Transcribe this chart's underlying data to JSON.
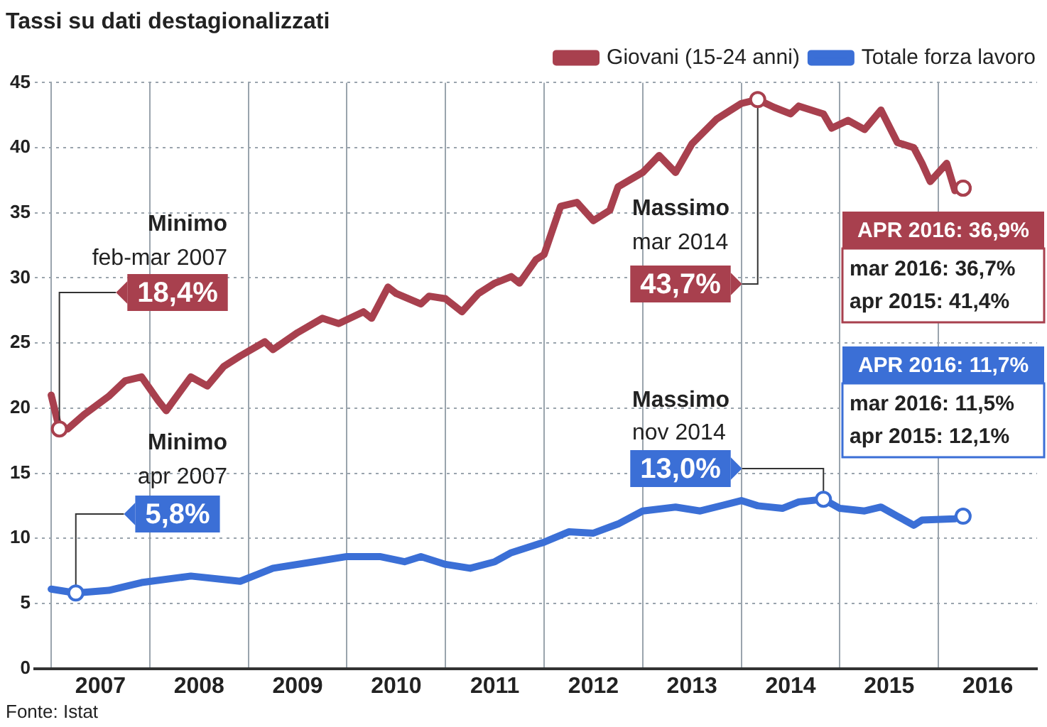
{
  "chart_data": {
    "type": "line",
    "title": "Tassi su dati destagionalizzati",
    "legend": "top right",
    "grid": true,
    "xlim": [
      "2006-11",
      "2017-01"
    ],
    "xticks": [
      {
        "value": "2007-01",
        "label": null
      },
      {
        "value": "2007-07",
        "label": "2007"
      },
      {
        "value": "2008-01",
        "label": null
      },
      {
        "value": "2008-07",
        "label": "2008"
      },
      {
        "value": "2009-01",
        "label": null
      },
      {
        "value": "2009-07",
        "label": "2009"
      },
      {
        "value": "2010-01",
        "label": null
      },
      {
        "value": "2010-07",
        "label": "2010"
      },
      {
        "value": "2011-01",
        "label": null
      },
      {
        "value": "2011-07",
        "label": "2011"
      },
      {
        "value": "2012-01",
        "label": null
      },
      {
        "value": "2012-07",
        "label": "2012"
      },
      {
        "value": "2013-01",
        "label": null
      },
      {
        "value": "2013-07",
        "label": "2013"
      },
      {
        "value": "2014-01",
        "label": null
      },
      {
        "value": "2014-07",
        "label": "2014"
      },
      {
        "value": "2015-01",
        "label": null
      },
      {
        "value": "2015-07",
        "label": "2015"
      },
      {
        "value": "2016-01",
        "label": null
      },
      {
        "value": "2016-07",
        "label": "2016"
      }
    ],
    "ylim": [
      0,
      45
    ],
    "yticks": [
      0,
      5,
      10,
      15,
      20,
      25,
      30,
      35,
      40,
      45
    ],
    "series": [
      {
        "name": "Giovani (15-24 anni)",
        "color": "#a8404e",
        "x": [
          "2007-01",
          "2007-02",
          "2007-03",
          "2007-05",
          "2007-08",
          "2007-10",
          "2007-12",
          "2008-02",
          "2008-03",
          "2008-06",
          "2008-08",
          "2008-10",
          "2008-12",
          "2009-03",
          "2009-04",
          "2009-07",
          "2009-10",
          "2009-12",
          "2010-03",
          "2010-04",
          "2010-06",
          "2010-07",
          "2010-10",
          "2010-11",
          "2011-01",
          "2011-03",
          "2011-05",
          "2011-07",
          "2011-09",
          "2011-10",
          "2011-12",
          "2012-01",
          "2012-03",
          "2012-05",
          "2012-07",
          "2012-09",
          "2012-10",
          "2013-01",
          "2013-03",
          "2013-05",
          "2013-07",
          "2013-10",
          "2014-01",
          "2014-03",
          "2014-05",
          "2014-07",
          "2014-08",
          "2014-11",
          "2014-12",
          "2015-02",
          "2015-04",
          "2015-06",
          "2015-08",
          "2015-10",
          "2015-11",
          "2015-12",
          "2016-02",
          "2016-03",
          "2016-04"
        ],
        "values": [
          21.0,
          18.4,
          18.4,
          19.5,
          20.9,
          22.1,
          22.4,
          20.6,
          19.8,
          22.4,
          21.7,
          23.2,
          24.0,
          25.1,
          24.5,
          25.8,
          26.9,
          26.5,
          27.4,
          26.9,
          29.3,
          28.8,
          28.0,
          28.6,
          28.4,
          27.4,
          28.8,
          29.6,
          30.1,
          29.6,
          31.4,
          31.8,
          35.5,
          35.8,
          34.4,
          35.2,
          37.0,
          38.1,
          39.4,
          38.1,
          40.3,
          42.2,
          43.4,
          43.7,
          43.1,
          42.6,
          43.2,
          42.6,
          41.5,
          42.1,
          41.4,
          42.9,
          40.4,
          40.0,
          38.8,
          37.4,
          38.8,
          36.7,
          36.9
        ]
      },
      {
        "name": "Totale forza lavoro",
        "color": "#3b6fd6",
        "x": [
          "2007-01",
          "2007-04",
          "2007-08",
          "2007-12",
          "2008-06",
          "2008-12",
          "2009-04",
          "2009-09",
          "2010-01",
          "2010-05",
          "2010-08",
          "2010-10",
          "2011-01",
          "2011-04",
          "2011-07",
          "2011-09",
          "2012-01",
          "2012-04",
          "2012-07",
          "2012-10",
          "2013-01",
          "2013-05",
          "2013-08",
          "2014-01",
          "2014-03",
          "2014-06",
          "2014-08",
          "2014-11",
          "2015-01",
          "2015-04",
          "2015-06",
          "2015-08",
          "2015-10",
          "2015-11",
          "2016-03",
          "2016-04"
        ],
        "values": [
          6.1,
          5.8,
          6.0,
          6.6,
          7.1,
          6.7,
          7.7,
          8.2,
          8.6,
          8.6,
          8.2,
          8.6,
          8.0,
          7.7,
          8.2,
          8.9,
          9.7,
          10.5,
          10.4,
          11.1,
          12.1,
          12.4,
          12.1,
          12.9,
          12.5,
          12.3,
          12.8,
          13.0,
          12.3,
          12.1,
          12.4,
          11.7,
          11.0,
          11.4,
          11.5,
          11.7
        ]
      }
    ],
    "annotations": [
      "Minimo",
      "feb-mar 2007",
      {
        "text": "18,4%",
        "x": "2007-02",
        "y": 18.4
      },
      "Minimo",
      "apr 2007",
      {
        "text": "5,8%",
        "x": "2007-04",
        "y": 5.8
      },
      "Massimo",
      "mar 2014",
      {
        "text": "43,7%",
        "x": "2014-03",
        "y": 43.7
      },
      "Massimo",
      "nov 2014",
      {
        "text": "13,0%",
        "x": "2014-11",
        "y": 13.0
      },
      {
        "text": "APR 2016: 36,9%",
        "x": "2016-04",
        "y": 36.9
      },
      "mar 2016: 36,7%",
      "apr 2015: 41,4%",
      "APR 2016: 11,7%",
      "mar 2016: 11,5%",
      "apr 2015: 12,1%",
      "Fonte: Istat"
    ]
  }
}
